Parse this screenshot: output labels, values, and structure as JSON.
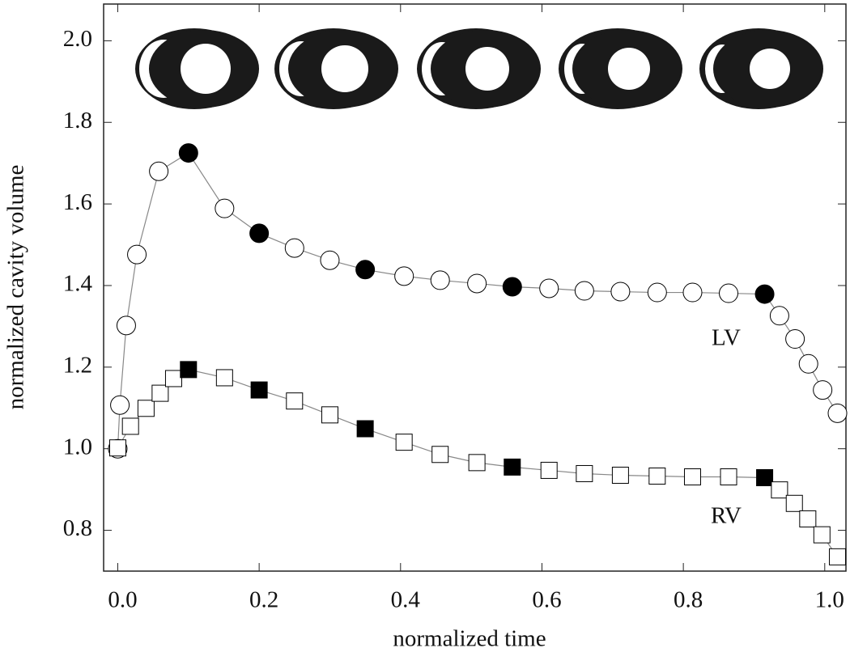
{
  "chart_data": {
    "type": "line",
    "xlabel": "normalized time",
    "ylabel": "normalized cavity volume",
    "xlim": [
      -0.02,
      1.03
    ],
    "ylim": [
      0.7,
      2.09
    ],
    "xticks": [
      {
        "value": 0,
        "label": "0.0"
      },
      0.2,
      0.4,
      0.6,
      0.8,
      {
        "value": 1,
        "label": "1.0"
      }
    ],
    "yticks": [
      0.8,
      {
        "value": 1,
        "label": "1.0"
      },
      1.2,
      1.4,
      1.6,
      1.8,
      {
        "value": 2,
        "label": "2.0"
      }
    ],
    "series": [
      {
        "name": "LV",
        "marker": "circle",
        "color": "#000",
        "x": [
          0,
          0.003,
          0.012,
          0.027,
          0.058,
          0.1,
          0.151,
          0.2,
          0.25,
          0.3,
          0.35,
          0.405,
          0.456,
          0.508,
          0.558,
          0.61,
          0.66,
          0.711,
          0.763,
          0.813,
          0.864,
          0.915,
          0.936,
          0.958,
          0.977,
          0.997,
          1.018
        ],
        "values": [
          1.0,
          1.107,
          1.302,
          1.476,
          1.68,
          1.725,
          1.589,
          1.528,
          1.492,
          1.462,
          1.439,
          1.423,
          1.413,
          1.405,
          1.397,
          1.393,
          1.387,
          1.385,
          1.383,
          1.383,
          1.381,
          1.379,
          1.326,
          1.269,
          1.208,
          1.144,
          1.087
        ],
        "filled": [
          false,
          false,
          false,
          false,
          false,
          true,
          false,
          true,
          false,
          false,
          true,
          false,
          false,
          false,
          true,
          false,
          false,
          false,
          false,
          false,
          false,
          true,
          false,
          false,
          false,
          false,
          false
        ]
      },
      {
        "name": "RV",
        "marker": "square",
        "color": "#000",
        "x": [
          0,
          0.018,
          0.04,
          0.06,
          0.079,
          0.1,
          0.151,
          0.2,
          0.25,
          0.3,
          0.35,
          0.405,
          0.456,
          0.508,
          0.558,
          0.61,
          0.66,
          0.711,
          0.763,
          0.813,
          0.864,
          0.915,
          0.936,
          0.957,
          0.976,
          0.996,
          1.018
        ],
        "values": [
          1.002,
          1.055,
          1.099,
          1.136,
          1.172,
          1.194,
          1.174,
          1.144,
          1.117,
          1.083,
          1.049,
          1.016,
          0.986,
          0.966,
          0.955,
          0.947,
          0.939,
          0.935,
          0.933,
          0.931,
          0.931,
          0.929,
          0.899,
          0.866,
          0.828,
          0.789,
          0.735
        ],
        "filled": [
          false,
          false,
          false,
          false,
          false,
          true,
          false,
          true,
          false,
          false,
          true,
          false,
          false,
          false,
          true,
          false,
          false,
          false,
          false,
          false,
          false,
          true,
          false,
          false,
          false,
          false,
          false
        ]
      }
    ]
  }
}
